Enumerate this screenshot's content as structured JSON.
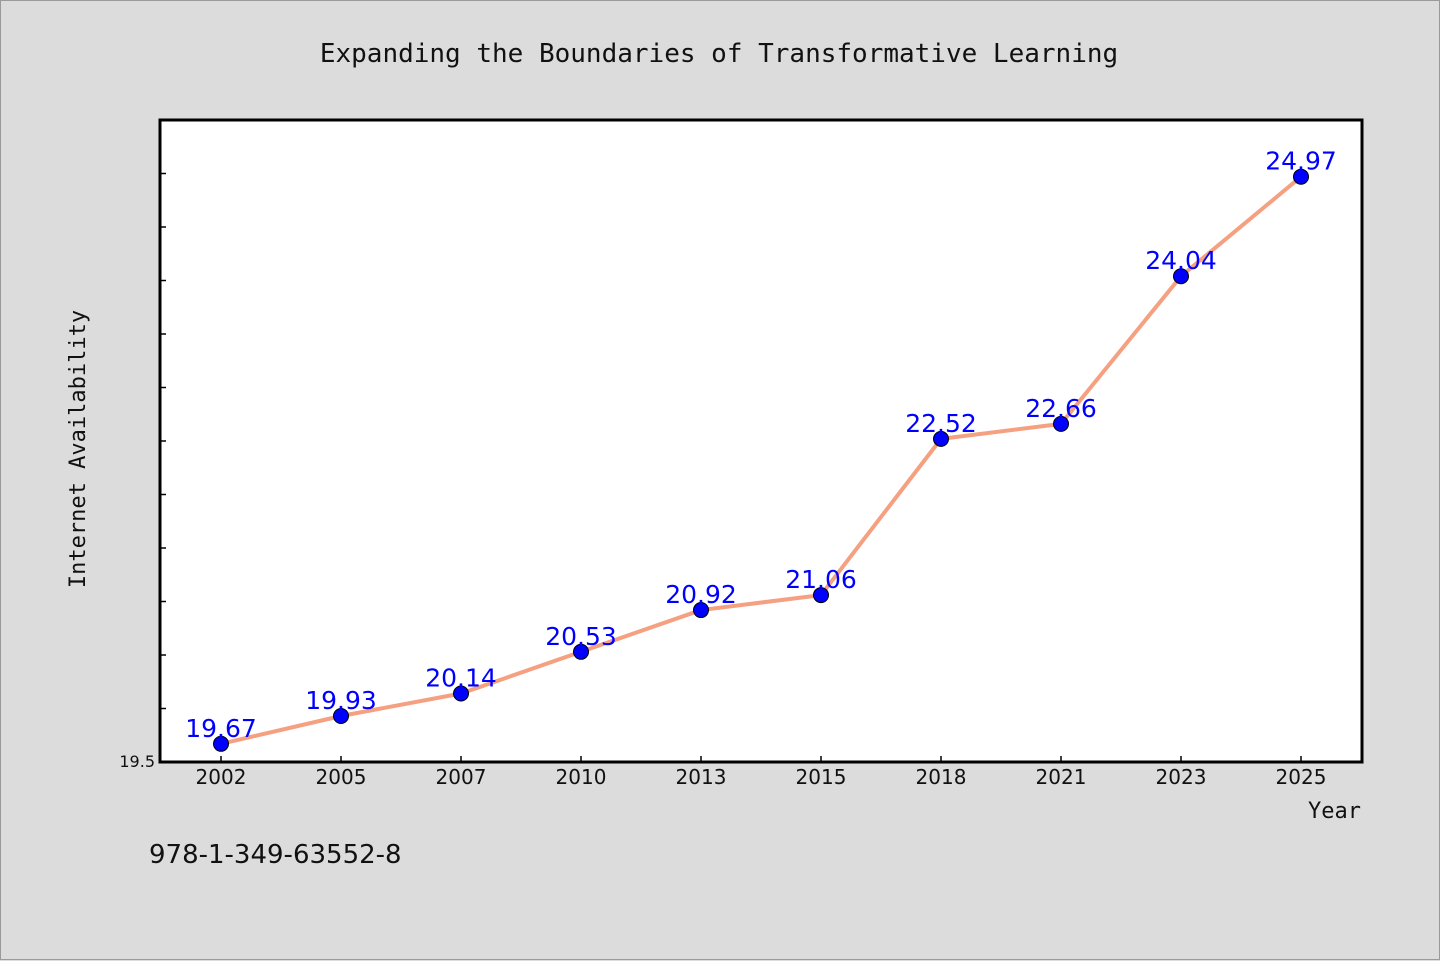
{
  "chart_data": {
    "type": "line",
    "title": "Expanding the Boundaries of Transformative Learning",
    "xlabel": "Year",
    "ylabel": "Internet Availability",
    "categories": [
      "2002",
      "2005",
      "2007",
      "2010",
      "2013",
      "2015",
      "2018",
      "2021",
      "2023",
      "2025"
    ],
    "series": [
      {
        "values": [
          19.67,
          19.93,
          20.14,
          20.53,
          20.92,
          21.06,
          22.52,
          22.66,
          24.04,
          24.97
        ]
      }
    ],
    "data_labels": [
      "19.67",
      "19.93",
      "20.14",
      "20.53",
      "20.92",
      "21.06",
      "22.52",
      "22.66",
      "24.04",
      "24.97"
    ],
    "ylim": [
      19.5,
      25.5
    ],
    "y_tick_labels": [
      "19.5"
    ],
    "grid": false,
    "colors": {
      "line": "#f5a080",
      "marker": "#0000ff",
      "label": "#0000ff"
    }
  },
  "footer": {
    "isbn": "978-1-349-63552-8"
  }
}
